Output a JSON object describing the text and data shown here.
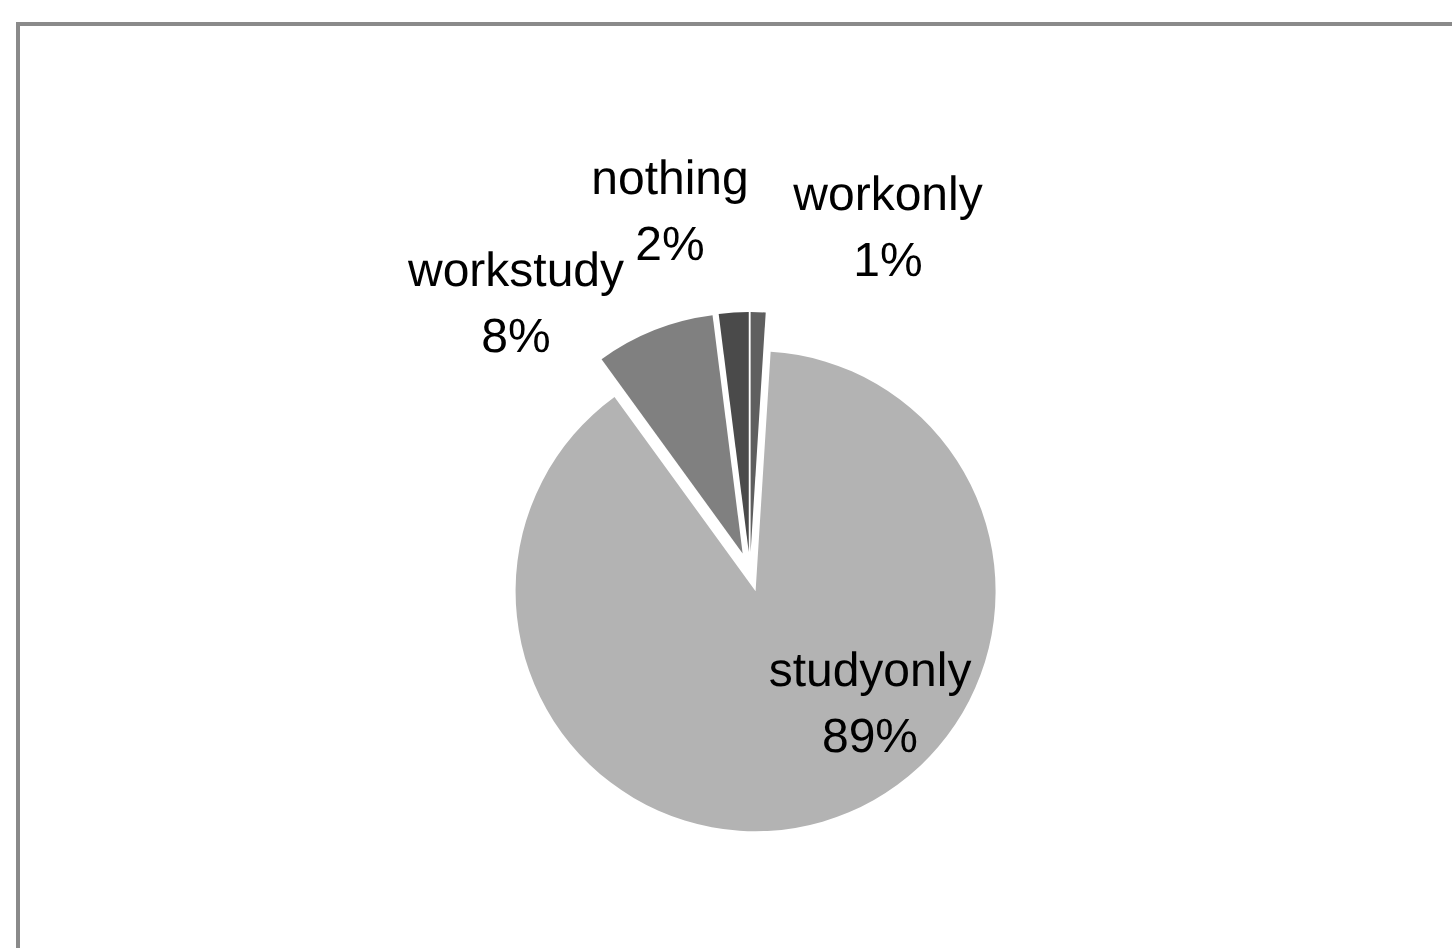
{
  "chart_data": {
    "type": "pie",
    "categories": [
      "workonly",
      "studyonly",
      "workstudy",
      "nothing"
    ],
    "values": [
      1,
      89,
      8,
      2
    ],
    "colors": [
      "#5f5f5f",
      "#b3b3b3",
      "#808080",
      "#4a4a4a"
    ],
    "value_labels": [
      "1%",
      "89%",
      "8%",
      "2%"
    ]
  }
}
